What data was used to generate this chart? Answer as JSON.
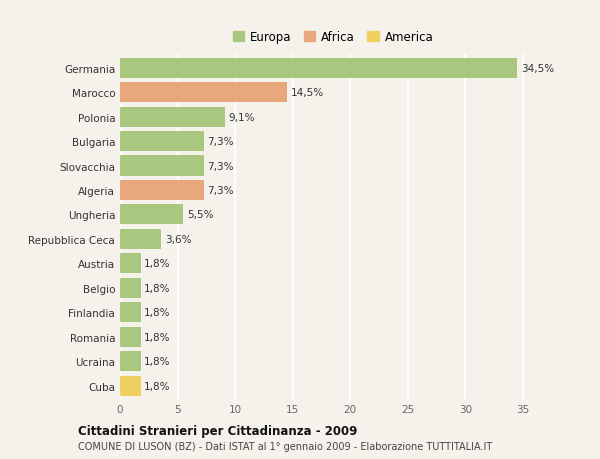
{
  "categories": [
    "Germania",
    "Marocco",
    "Polonia",
    "Bulgaria",
    "Slovacchia",
    "Algeria",
    "Ungheria",
    "Repubblica Ceca",
    "Austria",
    "Belgio",
    "Finlandia",
    "Romania",
    "Ucraina",
    "Cuba"
  ],
  "values": [
    34.5,
    14.5,
    9.1,
    7.3,
    7.3,
    7.3,
    5.5,
    3.6,
    1.8,
    1.8,
    1.8,
    1.8,
    1.8,
    1.8
  ],
  "labels": [
    "34,5%",
    "14,5%",
    "9,1%",
    "7,3%",
    "7,3%",
    "7,3%",
    "5,5%",
    "3,6%",
    "1,8%",
    "1,8%",
    "1,8%",
    "1,8%",
    "1,8%",
    "1,8%"
  ],
  "continents": [
    "Europa",
    "Africa",
    "Europa",
    "Europa",
    "Europa",
    "Africa",
    "Europa",
    "Europa",
    "Europa",
    "Europa",
    "Europa",
    "Europa",
    "Europa",
    "America"
  ],
  "colors": {
    "Europa": "#aac780",
    "Africa": "#e8a87c",
    "America": "#f0d060"
  },
  "legend_items": [
    "Europa",
    "Africa",
    "America"
  ],
  "title": "Cittadini Stranieri per Cittadinanza - 2009",
  "subtitle": "COMUNE DI LUSON (BZ) - Dati ISTAT al 1° gennaio 2009 - Elaborazione TUTTITALIA.IT",
  "xlim": [
    0,
    37
  ],
  "xticks": [
    0,
    5,
    10,
    15,
    20,
    25,
    30,
    35
  ],
  "background_color": "#f5f2ec",
  "grid_color": "#ffffff",
  "bar_height": 0.82
}
